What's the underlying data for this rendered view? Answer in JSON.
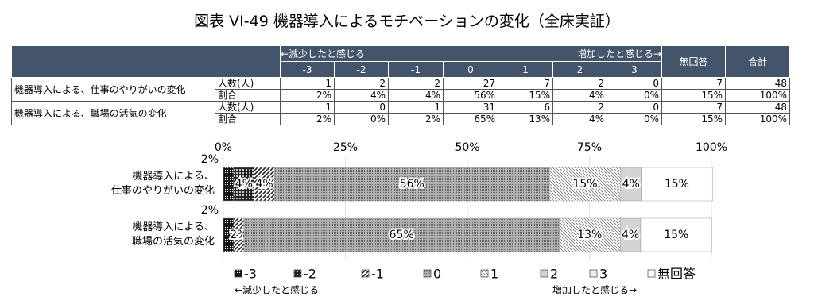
{
  "title": "図表 VI-49 機器導入によるモチベーションの変化（全床実証）",
  "table": {
    "group_left": "←減少したと感じる",
    "group_right": "増加したと感じる→",
    "columns": [
      "-3",
      "-2",
      "-1",
      "0",
      "1",
      "2",
      "3",
      "無回答",
      "合計"
    ],
    "rows": [
      {
        "label": "機器導入による、仕事のやりがいの変化",
        "count_label": "人数(人)",
        "counts": [
          1,
          2,
          2,
          27,
          7,
          2,
          0,
          7,
          48
        ],
        "ratio_label": "割合",
        "ratios": [
          "2%",
          "4%",
          "4%",
          "56%",
          "15%",
          "4%",
          "0%",
          "15%",
          "100%"
        ]
      },
      {
        "label": "機器導入による、職場の活気の変化",
        "count_label": "人数(人)",
        "counts": [
          1,
          0,
          1,
          31,
          6,
          2,
          0,
          7,
          48
        ],
        "ratio_label": "割合",
        "ratios": [
          "2%",
          "0%",
          "2%",
          "65%",
          "13%",
          "4%",
          "0%",
          "15%",
          "100%"
        ]
      }
    ]
  },
  "chart_data": {
    "type": "stacked_bar_horizontal",
    "categories": [
      "機器導入による、\n仕事のやりがいの変化",
      "機器導入による、\n職場の活気の変化"
    ],
    "xlim": [
      0,
      100
    ],
    "xticks": [
      {
        "value": 0,
        "label": "0%"
      },
      {
        "value": 25,
        "label": "25%"
      },
      {
        "value": 50,
        "label": "50%"
      },
      {
        "value": 75,
        "label": "75%"
      },
      {
        "value": 100,
        "label": "100%"
      }
    ],
    "series": [
      {
        "name": "-3",
        "color": "#111111",
        "values": [
          2.1,
          2.1
        ],
        "value_labels": [
          "2%",
          "2%"
        ]
      },
      {
        "name": "-2",
        "color": "#3a3a3a",
        "values": [
          4.2,
          0
        ],
        "value_labels": [
          "4%",
          null
        ]
      },
      {
        "name": "-1",
        "color": "#777777",
        "values": [
          4.2,
          2.1
        ],
        "value_labels": [
          "4%",
          "2%"
        ]
      },
      {
        "name": "0",
        "color": "#9a9a9a",
        "values": [
          56.3,
          64.6
        ],
        "value_labels": [
          "56%",
          "65%"
        ]
      },
      {
        "name": "1",
        "color": "#bbbbbb",
        "values": [
          14.6,
          12.5
        ],
        "value_labels": [
          "15%",
          "13%"
        ]
      },
      {
        "name": "2",
        "color": "#d4d4d4",
        "values": [
          4.2,
          4.2
        ],
        "value_labels": [
          "4%",
          "4%"
        ]
      },
      {
        "name": "3",
        "color": "#eeeeee",
        "values": [
          0,
          0
        ],
        "value_labels": [
          null,
          null
        ]
      },
      {
        "name": "無回答",
        "color": "#ffffff",
        "values": [
          14.6,
          14.6
        ],
        "value_labels": [
          "15%",
          "15%"
        ]
      }
    ]
  }
}
